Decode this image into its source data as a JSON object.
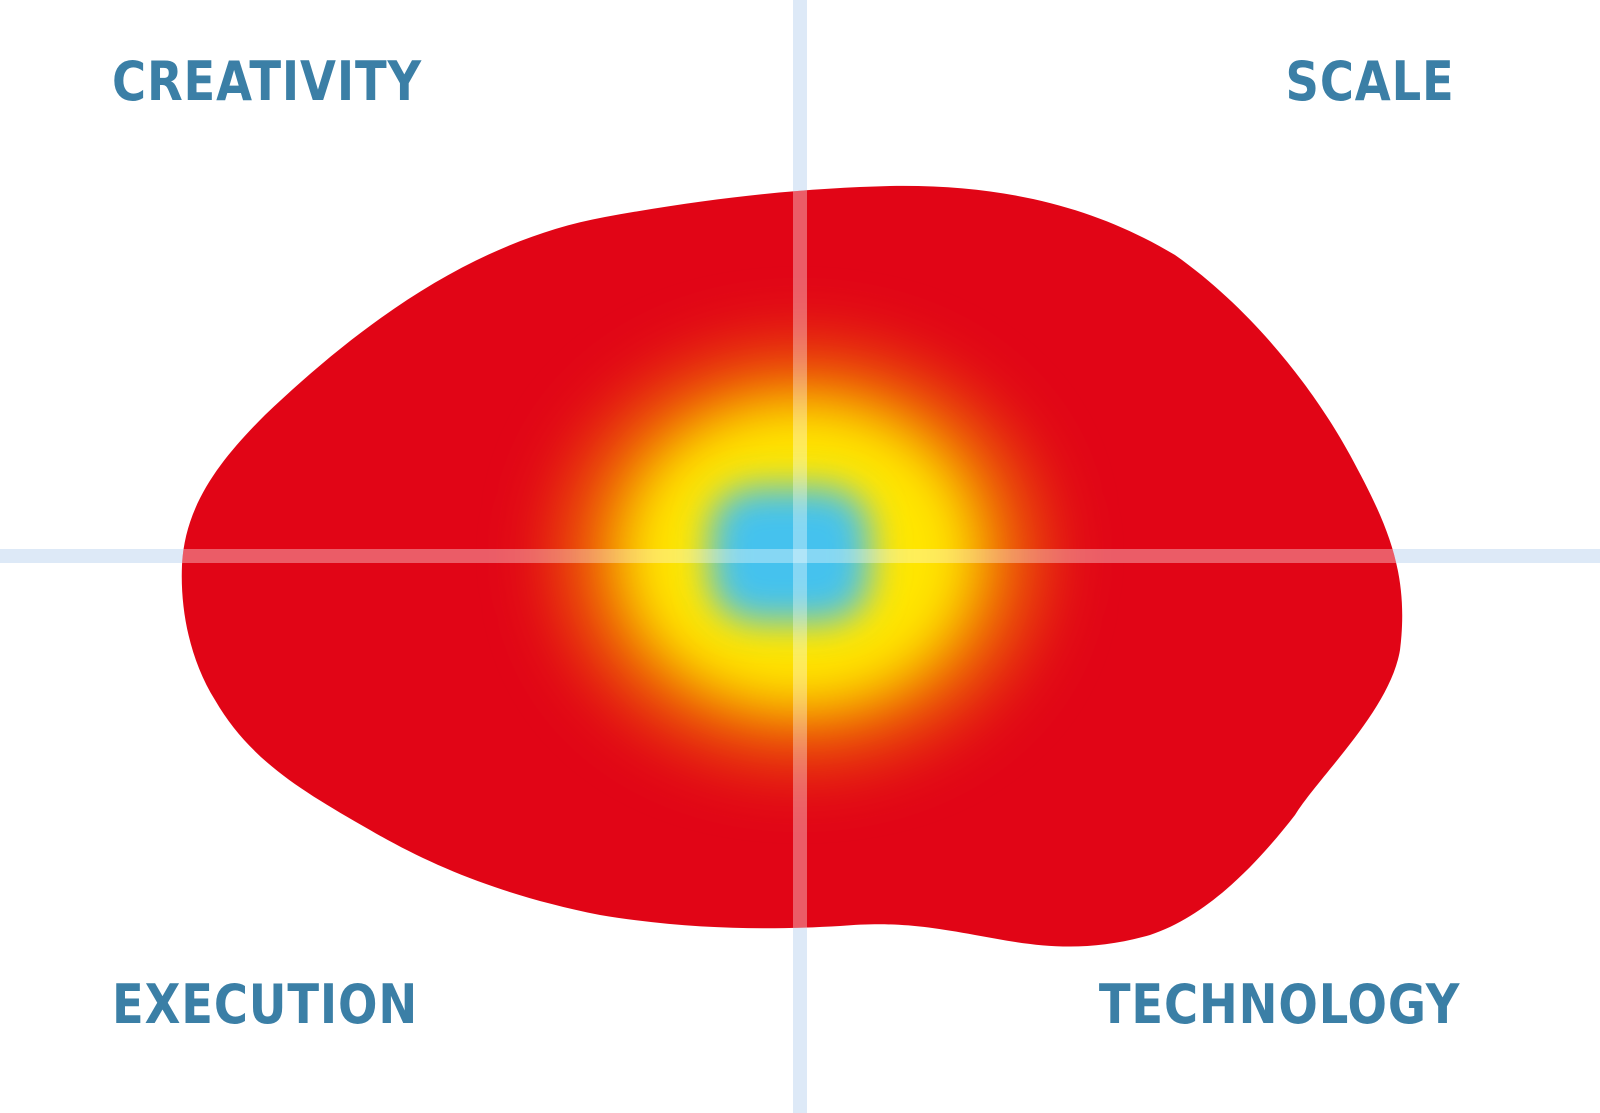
{
  "labels": {
    "top_left": "CREATIVITY",
    "top_right": "SCALE",
    "bottom_left": "EXECUTION",
    "bottom_right": "TECHNOLOGY"
  },
  "colors": {
    "label": "#3b7fa6",
    "axis": "#dde9f7",
    "axis_on_shape": "#f08070",
    "shape": "#e10516",
    "gradient_mid": "#f07a00",
    "gradient_yellow": "#ffe600",
    "core": "#45c2ee"
  }
}
